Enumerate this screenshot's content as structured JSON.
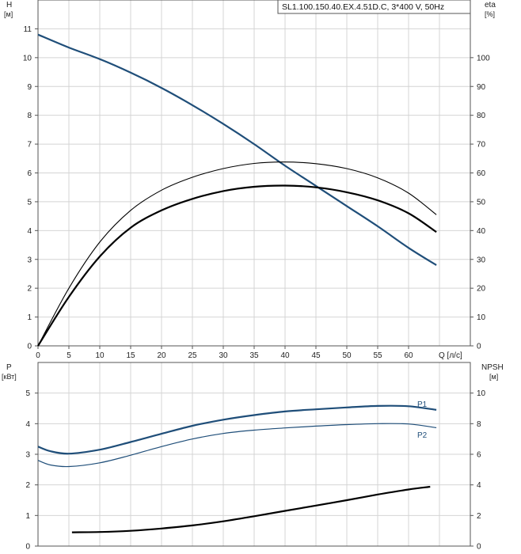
{
  "title": "SL1.100.150.40.EX.4.51D.C, 3*400 V, 50Hz",
  "colors": {
    "head": "#1f4e79",
    "power": "#1f4e79",
    "eta_total": "#000000",
    "eta_hydraulic": "#000000",
    "npsh": "#000000",
    "grid": "#d4d4d4",
    "axis": "#555555",
    "p_label": "#1f4e79"
  },
  "chart_data": [
    {
      "type": "line",
      "name": "top",
      "title": "SL1.100.150.40.EX.4.51D.C, 3*400 V, 50Hz",
      "xlabel": "Q [л/с]",
      "ylabel": "H\n[м]",
      "ylabel_lines": [
        "H",
        "[м]"
      ],
      "y2label_lines": [
        "eta",
        "[%]"
      ],
      "xlim": [
        0,
        70
      ],
      "ylim": [
        0,
        12
      ],
      "y2lim": [
        0,
        120
      ],
      "x_ticks": [
        0,
        5,
        10,
        15,
        20,
        25,
        30,
        35,
        40,
        45,
        50,
        55,
        60
      ],
      "y_ticks": [
        0,
        1,
        2,
        3,
        4,
        5,
        6,
        7,
        8,
        9,
        10,
        11
      ],
      "y2_ticks": [
        0,
        10,
        20,
        30,
        40,
        50,
        60,
        70,
        80,
        90,
        100
      ],
      "grid": true,
      "series": [
        {
          "key": "head",
          "axis": "y",
          "points": [
            [
              0,
              10.8
            ],
            [
              5,
              10.35
            ],
            [
              10,
              9.95
            ],
            [
              15,
              9.48
            ],
            [
              20,
              8.95
            ],
            [
              25,
              8.35
            ],
            [
              30,
              7.7
            ],
            [
              35,
              7.0
            ],
            [
              40,
              6.25
            ],
            [
              45,
              5.55
            ],
            [
              50,
              4.85
            ],
            [
              55,
              4.15
            ],
            [
              60,
              3.4
            ],
            [
              64.5,
              2.8
            ]
          ]
        },
        {
          "key": "eta_total",
          "axis": "y2",
          "points": [
            [
              0,
              0
            ],
            [
              5,
              17
            ],
            [
              10,
              31
            ],
            [
              15,
              41
            ],
            [
              20,
              47
            ],
            [
              25,
              51
            ],
            [
              30,
              53.7
            ],
            [
              35,
              55.2
            ],
            [
              40,
              55.6
            ],
            [
              45,
              55
            ],
            [
              50,
              53.3
            ],
            [
              55,
              50.5
            ],
            [
              60,
              46
            ],
            [
              64.5,
              39.5
            ]
          ]
        },
        {
          "key": "eta_hydraulic",
          "axis": "y2",
          "points": [
            [
              0,
              0
            ],
            [
              5,
              20
            ],
            [
              10,
              36
            ],
            [
              15,
              47
            ],
            [
              20,
              54
            ],
            [
              25,
              58.5
            ],
            [
              30,
              61.5
            ],
            [
              35,
              63.3
            ],
            [
              40,
              63.8
            ],
            [
              45,
              63.2
            ],
            [
              50,
              61.5
            ],
            [
              55,
              58.3
            ],
            [
              60,
              53
            ],
            [
              64.5,
              45.5
            ]
          ]
        }
      ]
    },
    {
      "type": "line",
      "name": "bottom",
      "xlim": [
        0,
        70
      ],
      "ylim": [
        0,
        6
      ],
      "y2lim": [
        0,
        12
      ],
      "ylabel_lines": [
        "P",
        "[кВт]"
      ],
      "y2label_lines": [
        "NPSH",
        "[м]"
      ],
      "y_ticks": [
        0,
        1,
        2,
        3,
        4,
        5
      ],
      "y2_ticks": [
        0,
        2,
        4,
        6,
        8,
        10
      ],
      "grid": true,
      "series": [
        {
          "name": "P1",
          "axis": "y",
          "points": [
            [
              0,
              3.25
            ],
            [
              2,
              3.1
            ],
            [
              5,
              3.02
            ],
            [
              10,
              3.15
            ],
            [
              15,
              3.4
            ],
            [
              20,
              3.67
            ],
            [
              25,
              3.93
            ],
            [
              30,
              4.13
            ],
            [
              35,
              4.28
            ],
            [
              40,
              4.4
            ],
            [
              45,
              4.47
            ],
            [
              50,
              4.53
            ],
            [
              55,
              4.58
            ],
            [
              60,
              4.57
            ],
            [
              64.5,
              4.45
            ]
          ]
        },
        {
          "name": "P2",
          "axis": "y",
          "points": [
            [
              0,
              2.8
            ],
            [
              2,
              2.65
            ],
            [
              5,
              2.6
            ],
            [
              10,
              2.72
            ],
            [
              15,
              2.97
            ],
            [
              20,
              3.25
            ],
            [
              25,
              3.5
            ],
            [
              30,
              3.68
            ],
            [
              35,
              3.79
            ],
            [
              40,
              3.86
            ],
            [
              45,
              3.92
            ],
            [
              50,
              3.97
            ],
            [
              55,
              4.0
            ],
            [
              60,
              3.99
            ],
            [
              64.5,
              3.87
            ]
          ]
        },
        {
          "key": "npsh",
          "axis": "y2",
          "points": [
            [
              5.5,
              0.9
            ],
            [
              10,
              0.92
            ],
            [
              15,
              1.0
            ],
            [
              20,
              1.15
            ],
            [
              25,
              1.35
            ],
            [
              30,
              1.62
            ],
            [
              35,
              1.95
            ],
            [
              40,
              2.3
            ],
            [
              45,
              2.65
            ],
            [
              50,
              3.0
            ],
            [
              55,
              3.37
            ],
            [
              60,
              3.7
            ],
            [
              63.5,
              3.88
            ]
          ]
        }
      ]
    }
  ]
}
